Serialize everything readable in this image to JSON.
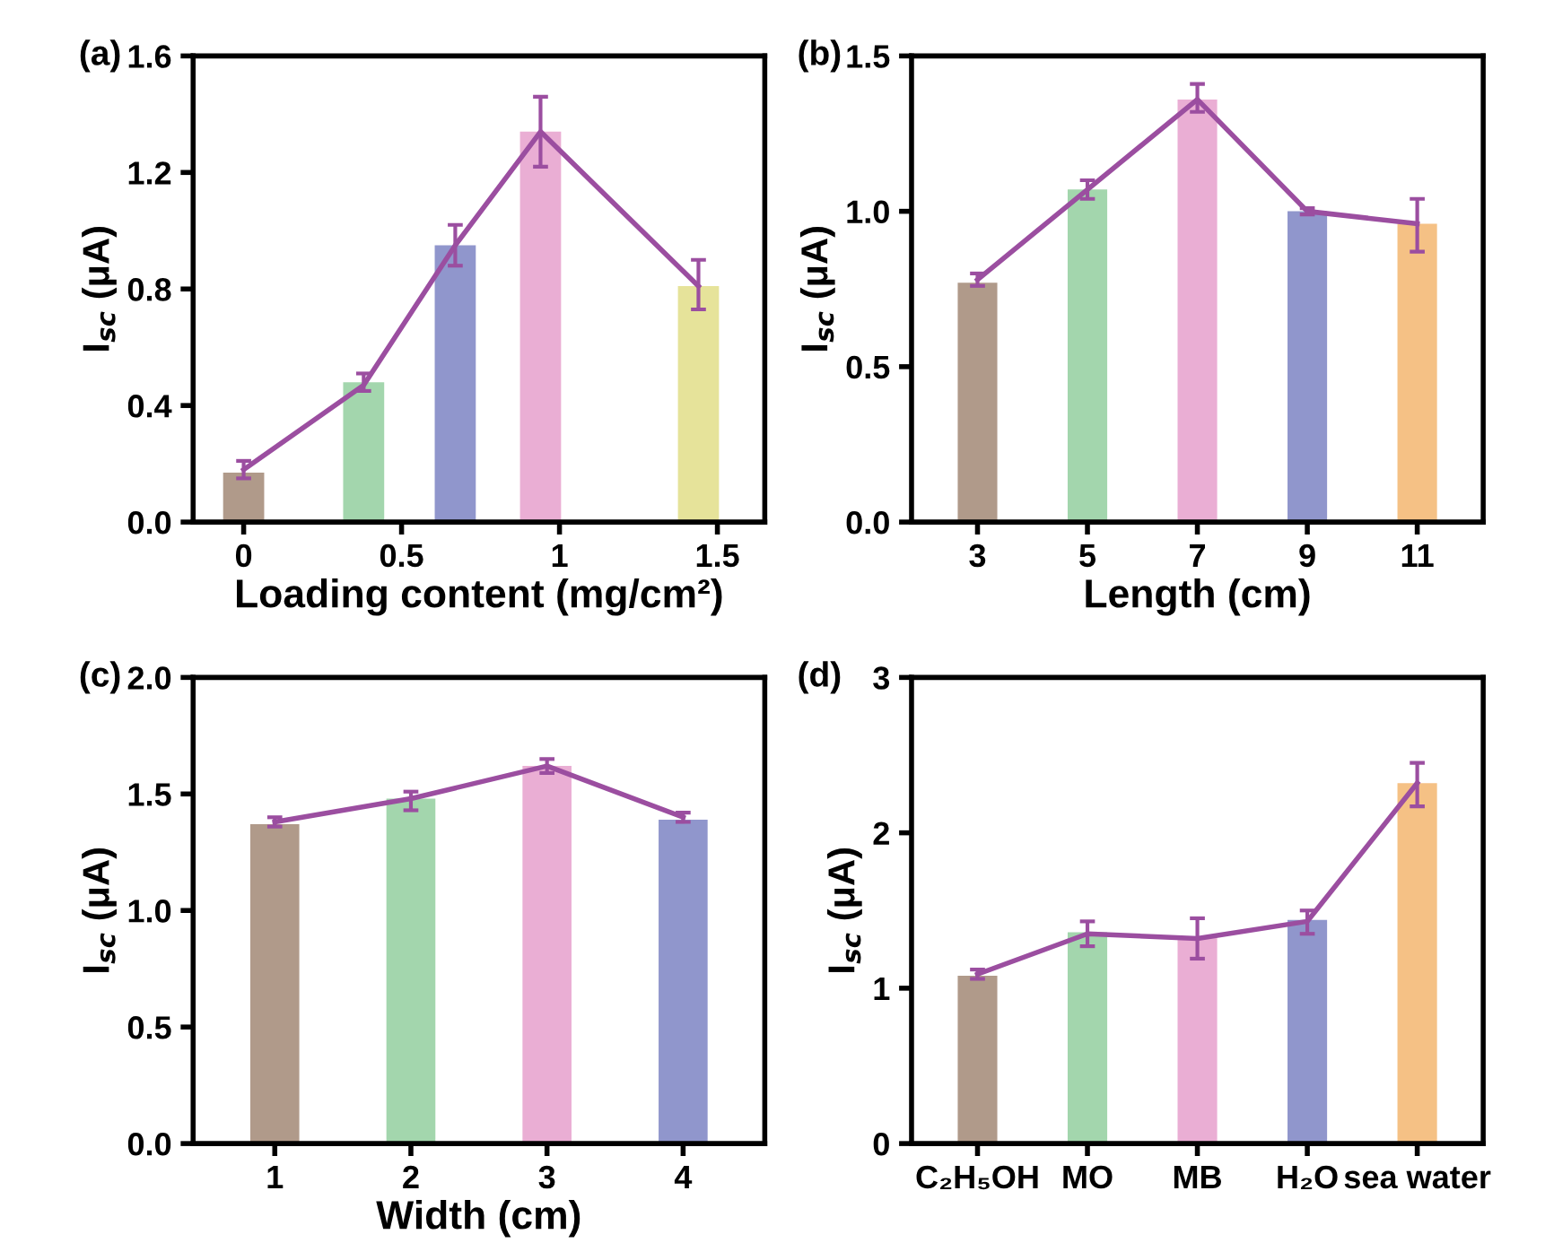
{
  "chart_data": [
    {
      "type": "bar",
      "title": "(a)",
      "xlabel": "Loading content (mg/cm²)",
      "ylabel": "I$_{sc}$ (μA)",
      "x": [
        0,
        0.38,
        0.67,
        0.94,
        1.44
      ],
      "xlim": [
        -0.16,
        1.65
      ],
      "xticks": [
        0,
        0.5,
        1,
        1.5
      ],
      "ylim": [
        0,
        1.6
      ],
      "yticks": [
        {
          "value": 0,
          "label": "0.0"
        },
        0.4,
        0.8,
        1.2,
        1.6
      ],
      "series": [
        {
          "colors": [
            "#b09a8a",
            "#a3d6ad",
            "#9096cc",
            "#eaaed4",
            "#e6e39a"
          ],
          "values": [
            0.17,
            0.48,
            0.95,
            1.34,
            0.81
          ]
        },
        {
          "type": "line",
          "color": "#9b4ea0",
          "values": [
            0.18,
            0.47,
            0.95,
            1.34,
            0.81
          ],
          "errors": [
            0.03,
            [
              0.45,
              0.51
            ],
            [
              0.88,
              1.02
            ],
            [
              1.22,
              1.46
            ],
            [
              0.73,
              0.9
            ]
          ]
        }
      ]
    },
    {
      "type": "bar",
      "title": "(b)",
      "xlabel": "Length (cm)",
      "ylabel": "I$_{sc}$ (μA)",
      "categories": [
        "3",
        "5",
        "7",
        "9",
        "11"
      ],
      "ylim": [
        0,
        1.5
      ],
      "yticks": [
        {
          "value": 0,
          "label": "0.0"
        },
        0.5,
        {
          "value": 1,
          "label": "1.0"
        },
        1.5
      ],
      "series": [
        {
          "colors": [
            "#b09a8a",
            "#a3d6ad",
            "#eaaed4",
            "#9096cc",
            "#f5c185"
          ],
          "values": [
            0.77,
            1.07,
            1.36,
            1.0,
            0.96
          ]
        },
        {
          "type": "line",
          "color": "#9b4ea0",
          "values": [
            0.78,
            1.07,
            1.36,
            1.0,
            0.96
          ],
          "errors": [
            0.02,
            [
              1.04,
              1.1
            ],
            [
              1.32,
              1.41
            ],
            0.01,
            [
              0.87,
              1.04
            ]
          ]
        }
      ]
    },
    {
      "type": "bar",
      "title": "(c)",
      "xlabel": "Width (cm)",
      "ylabel": "I$_{sc}$ (μA)",
      "categories": [
        "1",
        "2",
        "3",
        "4"
      ],
      "ylim": [
        0,
        2.0
      ],
      "yticks": [
        {
          "value": 0,
          "label": "0.0"
        },
        0.5,
        {
          "value": 1,
          "label": "1.0"
        },
        1.5,
        {
          "value": 2,
          "label": "2.0"
        }
      ],
      "series": [
        {
          "colors": [
            "#b09a8a",
            "#a3d6ad",
            "#eaaed4",
            "#9096cc"
          ],
          "values": [
            1.37,
            1.48,
            1.62,
            1.39
          ]
        },
        {
          "type": "line",
          "color": "#9b4ea0",
          "values": [
            1.38,
            1.48,
            1.62,
            1.4
          ],
          "errors": [
            0.02,
            [
              1.43,
              1.51
            ],
            [
              1.59,
              1.65
            ],
            0.02
          ]
        }
      ]
    },
    {
      "type": "bar",
      "title": "(d)",
      "ylabel": "I$_{sc}$ (μA)",
      "categories": [
        "C₂H₅OH",
        "MO",
        "MB",
        "H₂O",
        "sea water"
      ],
      "ylim": [
        0,
        3
      ],
      "yticks": [
        0,
        1,
        2,
        3
      ],
      "series": [
        {
          "colors": [
            "#b09a8a",
            "#a3d6ad",
            "#eaaed4",
            "#9096cc",
            "#f5c185"
          ],
          "values": [
            1.08,
            1.36,
            1.33,
            1.44,
            2.32
          ]
        },
        {
          "type": "line",
          "color": "#9b4ea0",
          "values": [
            1.09,
            1.35,
            1.32,
            1.43,
            2.32
          ],
          "errors": [
            0.03,
            [
              1.27,
              1.43
            ],
            [
              1.19,
              1.45
            ],
            [
              1.35,
              1.5
            ],
            [
              2.17,
              2.45
            ]
          ]
        }
      ]
    }
  ]
}
